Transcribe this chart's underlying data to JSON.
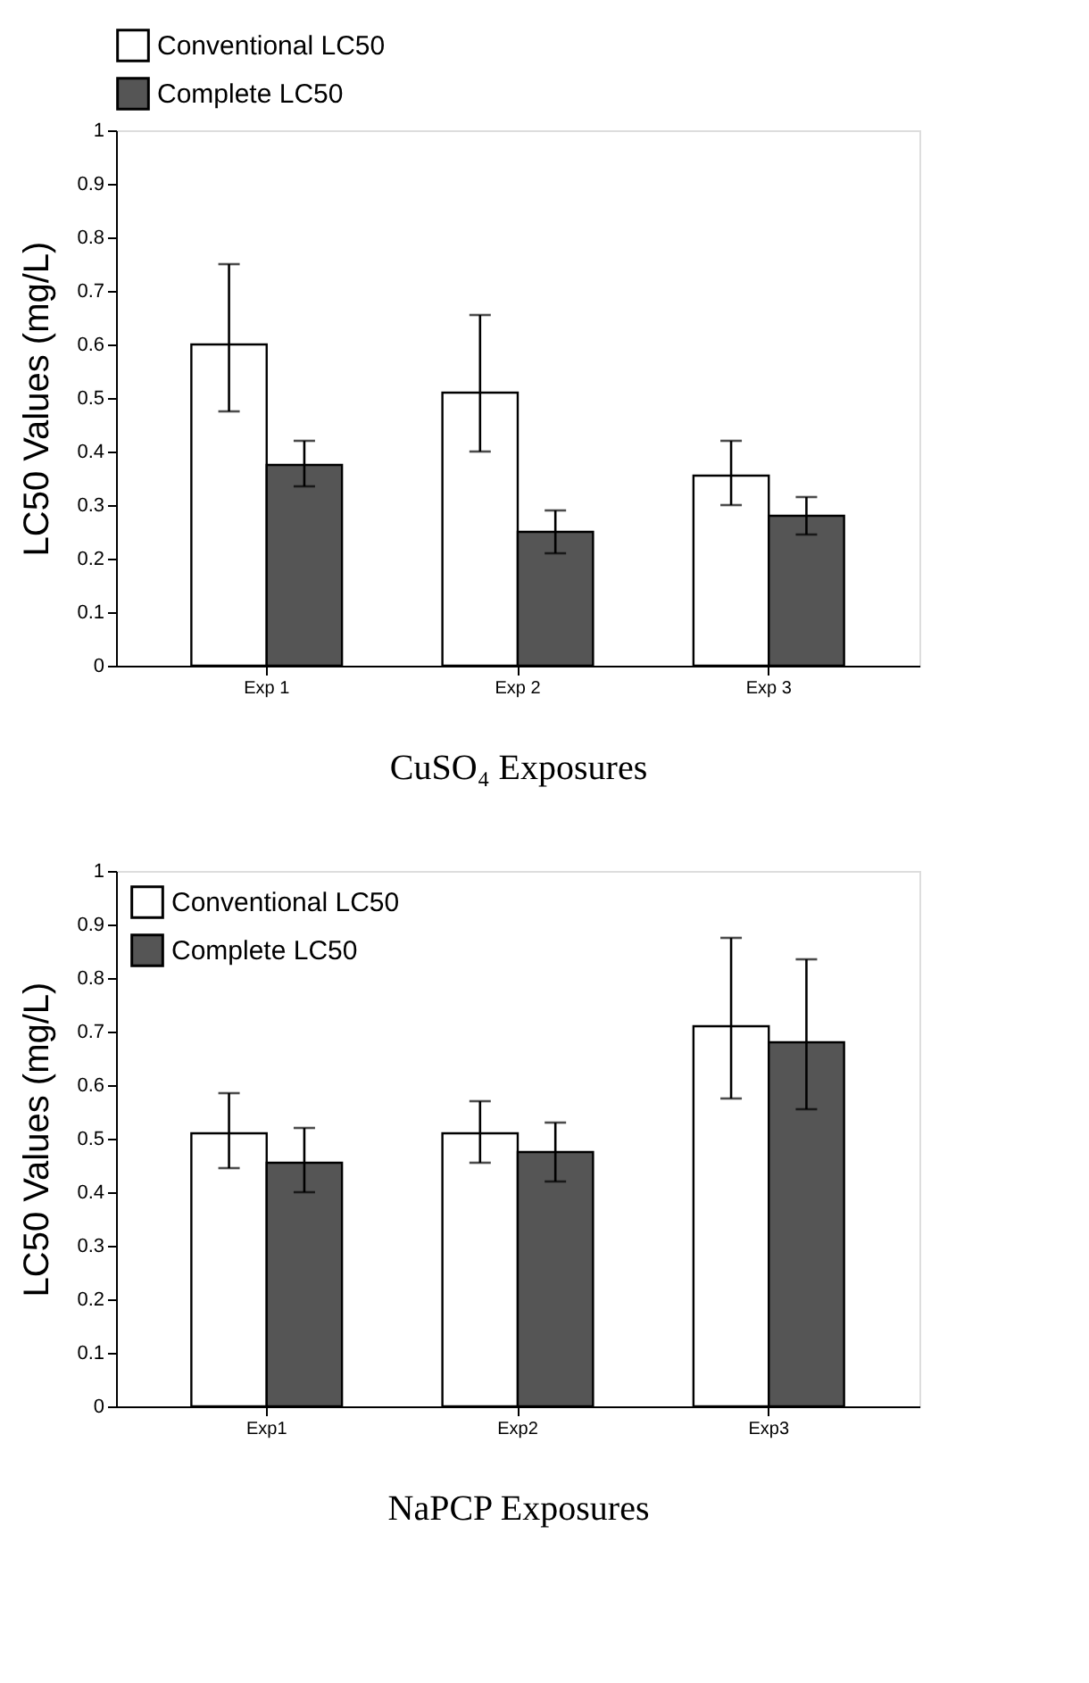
{
  "chart_data": [
    {
      "type": "bar",
      "categories": [
        "Exp 1",
        "Exp 2",
        "Exp 3"
      ],
      "xlabel": "CuSO₄ Exposures",
      "ylabel": "LC50 Values (mg/L)",
      "ylim": [
        0,
        1
      ],
      "yticks": [
        0,
        0.1,
        0.2,
        0.3,
        0.4,
        0.5,
        0.6,
        0.7,
        0.8,
        0.9,
        1
      ],
      "grid": false,
      "legend": "top",
      "series": [
        {
          "name": "Conventional LC50",
          "color": "#ffffff",
          "values": [
            0.6,
            0.51,
            0.355
          ],
          "errors": [
            [
              0.475,
              0.75
            ],
            [
              0.4,
              0.655
            ],
            [
              0.3,
              0.42
            ]
          ]
        },
        {
          "name": "Complete LC50",
          "color": "#555555",
          "values": [
            0.375,
            0.25,
            0.28
          ],
          "errors": [
            [
              0.335,
              0.42
            ],
            [
              0.21,
              0.29
            ],
            [
              0.245,
              0.315
            ]
          ]
        }
      ]
    },
    {
      "type": "bar",
      "categories": [
        "Exp1",
        "Exp2",
        "Exp3"
      ],
      "xlabel": "NaPCP Exposures",
      "ylabel": "LC50 Values (mg/L)",
      "ylim": [
        0,
        1
      ],
      "yticks": [
        0,
        0.1,
        0.2,
        0.3,
        0.4,
        0.5,
        0.6,
        0.7,
        0.8,
        0.9,
        1
      ],
      "grid": false,
      "legend": "top left",
      "series": [
        {
          "name": "Conventional LC50",
          "color": "#ffffff",
          "values": [
            0.51,
            0.51,
            0.71
          ],
          "errors": [
            [
              0.445,
              0.585
            ],
            [
              0.455,
              0.57
            ],
            [
              0.575,
              0.875
            ]
          ]
        },
        {
          "name": "Complete LC50",
          "color": "#555555",
          "values": [
            0.455,
            0.475,
            0.68
          ],
          "errors": [
            [
              0.4,
              0.52
            ],
            [
              0.42,
              0.53
            ],
            [
              0.555,
              0.835
            ]
          ]
        }
      ]
    }
  ]
}
